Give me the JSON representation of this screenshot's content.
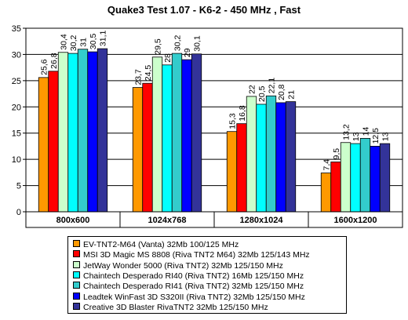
{
  "chart_data": {
    "type": "bar",
    "title": "Quake3 Test 1.07 - K6-2 - 450 MHz ,  Fast",
    "categories": [
      "800x600",
      "1024x768",
      "1280x1024",
      "1600x1200"
    ],
    "ylim": [
      0,
      35
    ],
    "yticks": [
      0,
      5,
      10,
      15,
      20,
      25,
      30,
      35
    ],
    "grid": true,
    "legend_position": "bottom",
    "series": [
      {
        "name": "EV-TNT2-M64 (Vanta) 32Mb 100/125 MHz",
        "color": "#ff9900",
        "values": [
          25.6,
          23.7,
          15.3,
          7.4
        ],
        "labels": [
          "25,6",
          "23,7",
          "15,3",
          "7,4"
        ]
      },
      {
        "name": "MSI 3D Magic MS 8808 (Riva TNT2 M64) 32Mb 125/143 MHz",
        "color": "#ff0000",
        "values": [
          26.8,
          24.5,
          16.8,
          9.5
        ],
        "labels": [
          "26,8",
          "24,5",
          "16,8",
          "9,5"
        ]
      },
      {
        "name": "JetWay Wonder 5000 (Riva TNT2) 32Mb 125/150 MHz",
        "color": "#ccffcc",
        "values": [
          30.4,
          29.5,
          22,
          13.2
        ],
        "labels": [
          "30,4",
          "29,5",
          "22",
          "13,2"
        ]
      },
      {
        "name": "Chaintech Desperado RI40 (Riva TNT2) 16Mb 125/150 MHz",
        "color": "#00ffff",
        "values": [
          30.2,
          28,
          20.5,
          13
        ],
        "labels": [
          "30,2",
          "28",
          "20,5",
          "13"
        ]
      },
      {
        "name": "Chaintech Desperado RI41 (Riva TNT2) 32Mb 125/150 MHz",
        "color": "#33cccc",
        "values": [
          31,
          30.2,
          22.1,
          14
        ],
        "labels": [
          "31",
          "30,2",
          "22,1",
          "14"
        ]
      },
      {
        "name": "Leadtek WinFast 3D S320II (Riva TNT2) 32Mb 125/150 MHz",
        "color": "#0000ff",
        "values": [
          30.5,
          29,
          20.8,
          12.5
        ],
        "labels": [
          "30,5",
          "29",
          "20,8",
          "12,5"
        ]
      },
      {
        "name": "Creative 3D Blaster RivaTNT2 32Mb 125/150 MHz",
        "color": "#333399",
        "values": [
          31.1,
          30.1,
          21,
          13
        ],
        "labels": [
          "31,1",
          "30,1",
          "21",
          "13"
        ]
      }
    ]
  }
}
